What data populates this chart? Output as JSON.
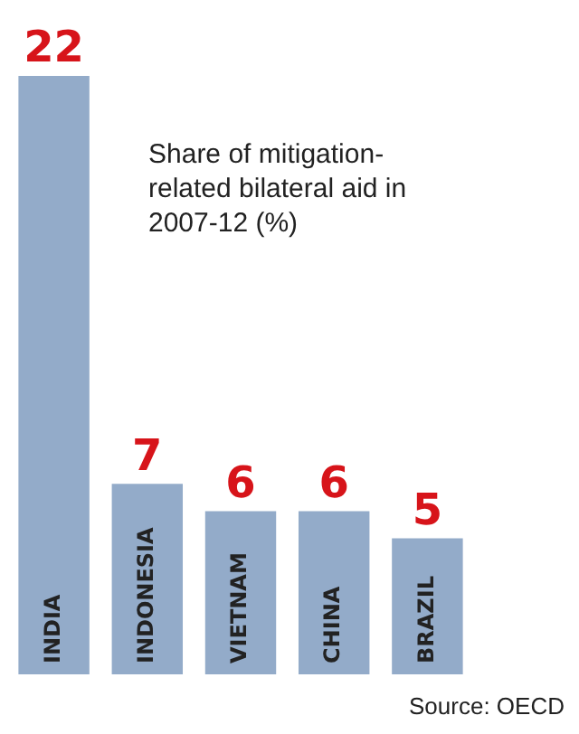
{
  "chart_data": {
    "type": "bar",
    "title": "Share of mitigation-related bilateral aid in 2007-12 (%)",
    "categories": [
      "INDIA",
      "INDONESIA",
      "VIETNAM",
      "CHINA",
      "BRAZIL"
    ],
    "values": [
      22,
      7,
      6,
      6,
      5
    ],
    "color": "#93abc9",
    "data_labels": true,
    "annotations": [
      "Source: OECD"
    ]
  }
}
